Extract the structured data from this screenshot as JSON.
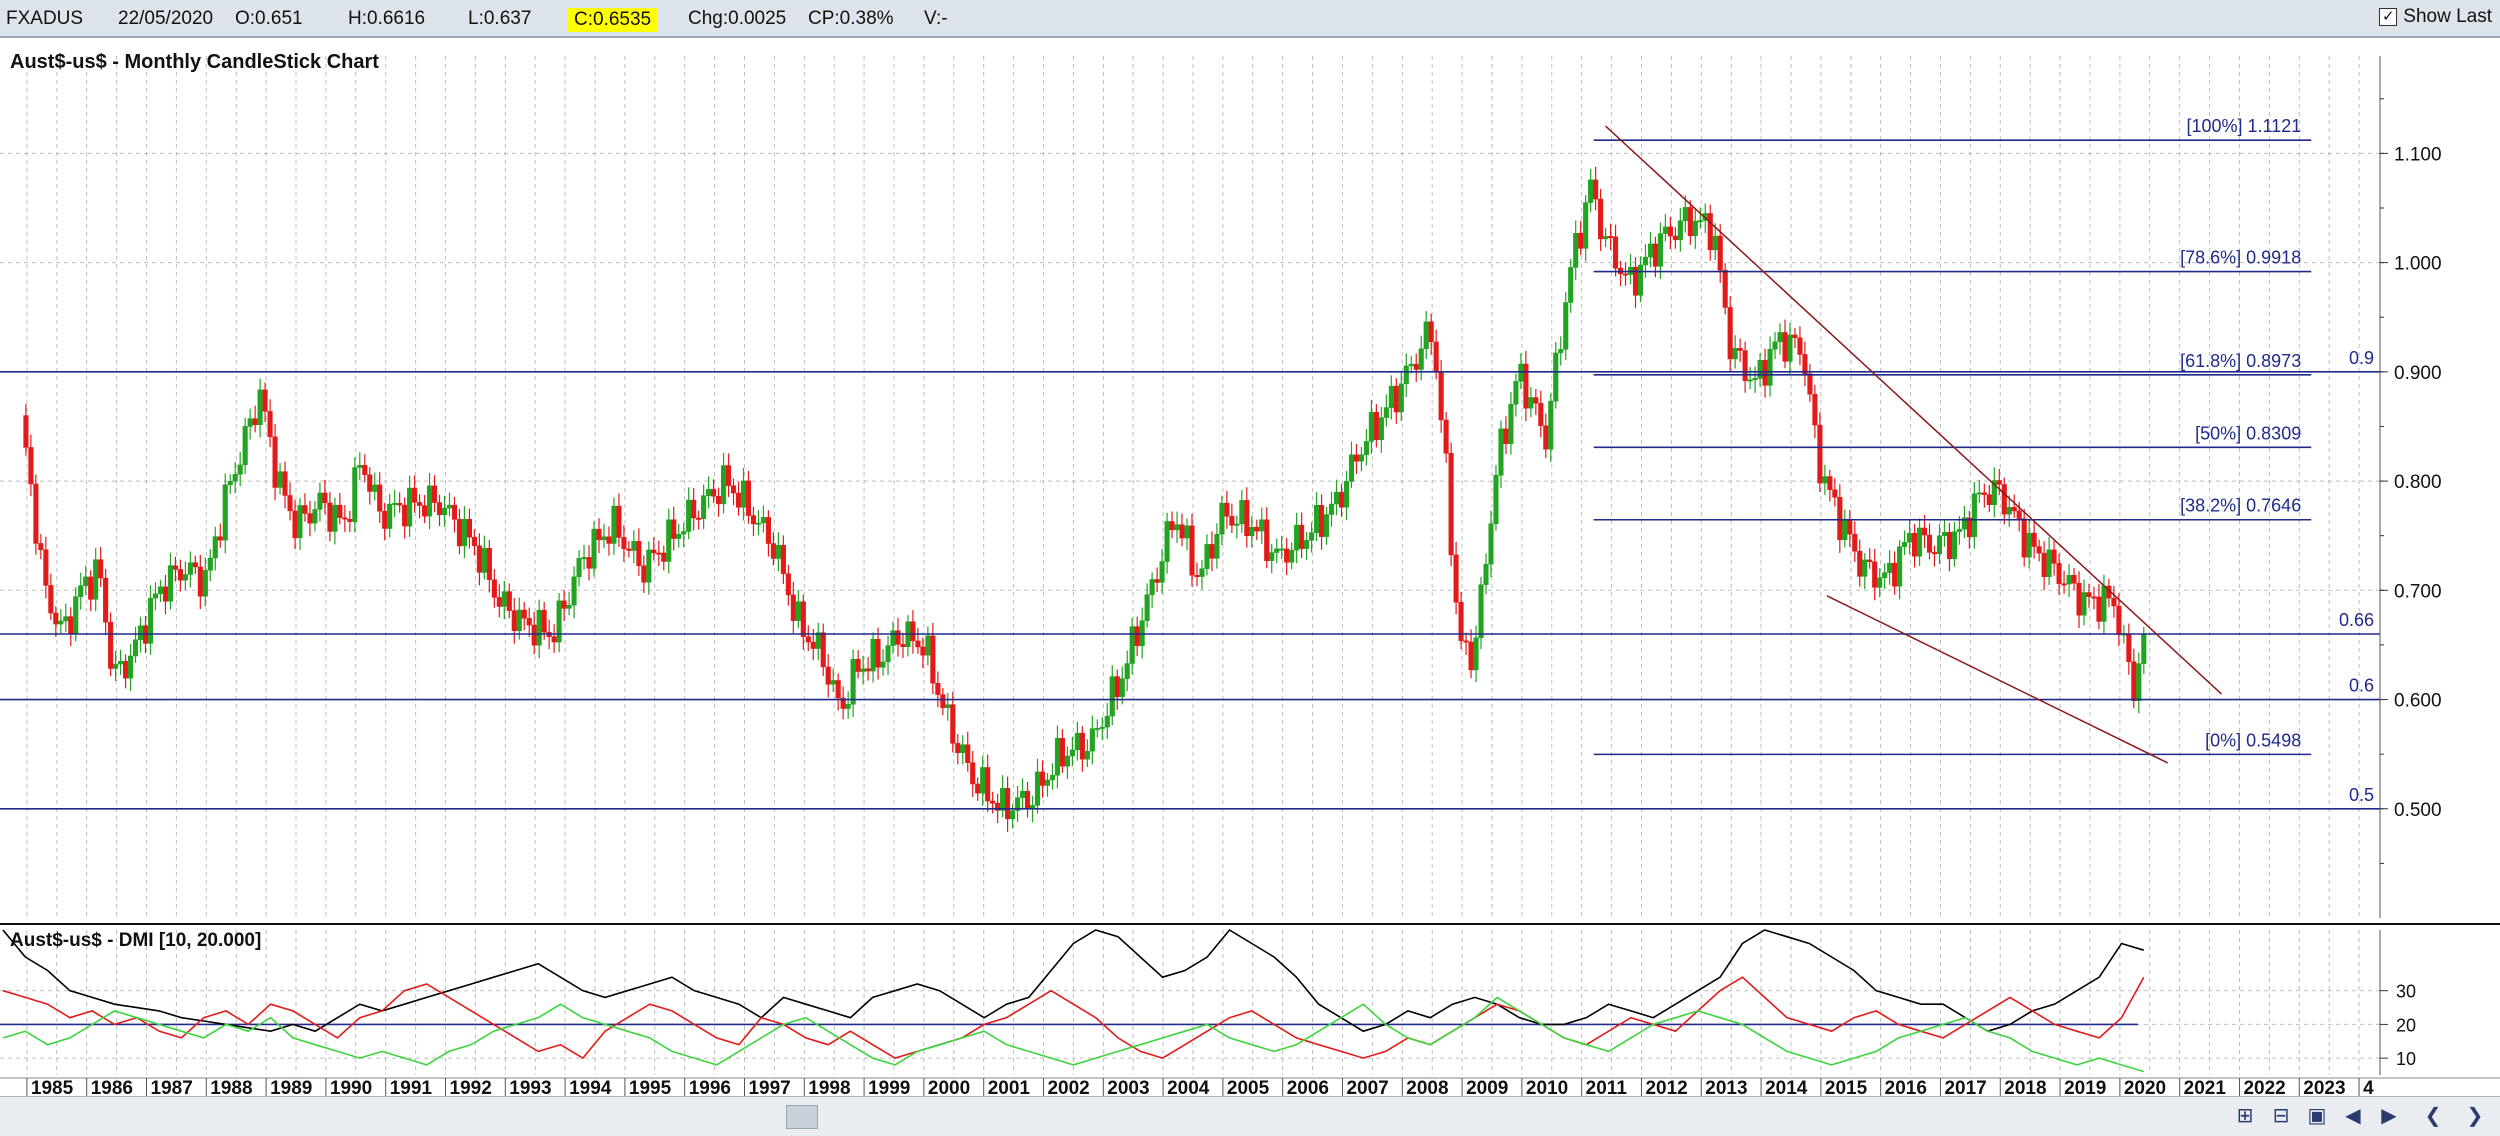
{
  "toolbar": {
    "symbol": "FXADUS",
    "date": "22/05/2020",
    "open": "O:0.651",
    "high": "H:0.6616",
    "low": "L:0.637",
    "close": "C:0.6535",
    "change": "Chg:0.0025",
    "change_pct": "CP:0.38%",
    "volume": "V:-",
    "show_last_label": "Show Last",
    "show_last_checked": "✓"
  },
  "chart_data": [
    {
      "type": "candlestick",
      "title": "Aust$-us$ - Monthly CandleStick Chart",
      "colors": {
        "up": "#22a322",
        "down": "#e31a1a",
        "hline": "#1f2a8a",
        "trend": "#8b1a1a",
        "grid": "#bdbdbd"
      },
      "y_ticks": [
        "1.100",
        "1.000",
        "0.900",
        "0.800",
        "0.700",
        "0.600",
        "0.500"
      ],
      "ylim": [
        0.4,
        1.18
      ],
      "x_ticks": [
        "1985",
        "1986",
        "1987",
        "1988",
        "1989",
        "1990",
        "1991",
        "1992",
        "1993",
        "1994",
        "1995",
        "1996",
        "1997",
        "1998",
        "1999",
        "2000",
        "2001",
        "2002",
        "2003",
        "2004",
        "2005",
        "2006",
        "2007",
        "2008",
        "2009",
        "2010",
        "2011",
        "2012",
        "2013",
        "2014",
        "2015",
        "2016",
        "2017",
        "2018",
        "2019",
        "2020",
        "2021",
        "2022",
        "2023",
        "4"
      ],
      "anchors": [
        {
          "date": 1984.9,
          "value": 0.86
        },
        {
          "date": 1985.3,
          "value": 0.7
        },
        {
          "date": 1985.6,
          "value": 0.66
        },
        {
          "date": 1985.9,
          "value": 0.7
        },
        {
          "date": 1986.2,
          "value": 0.72
        },
        {
          "date": 1986.45,
          "value": 0.62
        },
        {
          "date": 1986.75,
          "value": 0.64
        },
        {
          "date": 1987.2,
          "value": 0.7
        },
        {
          "date": 1987.6,
          "value": 0.72
        },
        {
          "date": 1988.0,
          "value": 0.71
        },
        {
          "date": 1988.3,
          "value": 0.78
        },
        {
          "date": 1988.9,
          "value": 0.88
        },
        {
          "date": 1989.2,
          "value": 0.8
        },
        {
          "date": 1989.5,
          "value": 0.76
        },
        {
          "date": 1989.9,
          "value": 0.78
        },
        {
          "date": 1990.3,
          "value": 0.76
        },
        {
          "date": 1990.6,
          "value": 0.82
        },
        {
          "date": 1990.9,
          "value": 0.77
        },
        {
          "date": 1991.5,
          "value": 0.78
        },
        {
          "date": 1991.9,
          "value": 0.78
        },
        {
          "date": 1992.5,
          "value": 0.74
        },
        {
          "date": 1992.9,
          "value": 0.69
        },
        {
          "date": 1993.3,
          "value": 0.67
        },
        {
          "date": 1993.8,
          "value": 0.66
        },
        {
          "date": 1994.3,
          "value": 0.73
        },
        {
          "date": 1994.8,
          "value": 0.76
        },
        {
          "date": 1995.3,
          "value": 0.72
        },
        {
          "date": 1995.8,
          "value": 0.75
        },
        {
          "date": 1996.3,
          "value": 0.78
        },
        {
          "date": 1996.7,
          "value": 0.8
        },
        {
          "date": 1997.0,
          "value": 0.78
        },
        {
          "date": 1997.5,
          "value": 0.74
        },
        {
          "date": 1997.9,
          "value": 0.67
        },
        {
          "date": 1998.3,
          "value": 0.64
        },
        {
          "date": 1998.6,
          "value": 0.59
        },
        {
          "date": 1998.9,
          "value": 0.63
        },
        {
          "date": 1999.3,
          "value": 0.64
        },
        {
          "date": 1999.6,
          "value": 0.66
        },
        {
          "date": 2000.0,
          "value": 0.65
        },
        {
          "date": 2000.4,
          "value": 0.58
        },
        {
          "date": 2000.8,
          "value": 0.53
        },
        {
          "date": 2001.3,
          "value": 0.5
        },
        {
          "date": 2001.8,
          "value": 0.51
        },
        {
          "date": 2002.3,
          "value": 0.55
        },
        {
          "date": 2002.8,
          "value": 0.56
        },
        {
          "date": 2003.3,
          "value": 0.62
        },
        {
          "date": 2003.8,
          "value": 0.7
        },
        {
          "date": 2004.2,
          "value": 0.77
        },
        {
          "date": 2004.6,
          "value": 0.71
        },
        {
          "date": 2005.0,
          "value": 0.77
        },
        {
          "date": 2005.5,
          "value": 0.76
        },
        {
          "date": 2005.9,
          "value": 0.73
        },
        {
          "date": 2006.4,
          "value": 0.75
        },
        {
          "date": 2006.9,
          "value": 0.78
        },
        {
          "date": 2007.3,
          "value": 0.83
        },
        {
          "date": 2007.9,
          "value": 0.88
        },
        {
          "date": 2008.5,
          "value": 0.94
        },
        {
          "date": 2008.75,
          "value": 0.8
        },
        {
          "date": 2008.95,
          "value": 0.65
        },
        {
          "date": 2009.2,
          "value": 0.64
        },
        {
          "date": 2009.6,
          "value": 0.82
        },
        {
          "date": 2009.95,
          "value": 0.9
        },
        {
          "date": 2010.4,
          "value": 0.84
        },
        {
          "date": 2010.8,
          "value": 0.99
        },
        {
          "date": 2011.15,
          "value": 1.07
        },
        {
          "date": 2011.4,
          "value": 1.02
        },
        {
          "date": 2011.8,
          "value": 0.98
        },
        {
          "date": 2012.3,
          "value": 1.02
        },
        {
          "date": 2012.8,
          "value": 1.04
        },
        {
          "date": 2013.2,
          "value": 1.03
        },
        {
          "date": 2013.5,
          "value": 0.92
        },
        {
          "date": 2013.9,
          "value": 0.89
        },
        {
          "date": 2014.3,
          "value": 0.93
        },
        {
          "date": 2014.7,
          "value": 0.92
        },
        {
          "date": 2014.95,
          "value": 0.82
        },
        {
          "date": 2015.2,
          "value": 0.78
        },
        {
          "date": 2015.7,
          "value": 0.72
        },
        {
          "date": 2016.1,
          "value": 0.71
        },
        {
          "date": 2016.5,
          "value": 0.75
        },
        {
          "date": 2016.9,
          "value": 0.74
        },
        {
          "date": 2017.3,
          "value": 0.75
        },
        {
          "date": 2017.7,
          "value": 0.79
        },
        {
          "date": 2018.0,
          "value": 0.79
        },
        {
          "date": 2018.5,
          "value": 0.74
        },
        {
          "date": 2018.9,
          "value": 0.72
        },
        {
          "date": 2019.4,
          "value": 0.69
        },
        {
          "date": 2019.9,
          "value": 0.69
        },
        {
          "date": 2020.1,
          "value": 0.64
        },
        {
          "date": 2020.25,
          "value": 0.61
        },
        {
          "date": 2020.4,
          "value": 0.6535
        }
      ],
      "horizontal_lines": [
        {
          "value": 0.9,
          "label": "0.9"
        },
        {
          "value": 0.66,
          "label": "0.66"
        },
        {
          "value": 0.6,
          "label": "0.6"
        },
        {
          "value": 0.5,
          "label": "0.5"
        }
      ],
      "fibonacci": [
        {
          "level": "[100%] 1.1121",
          "value": 1.1121
        },
        {
          "level": "[78.6%] 0.9918",
          "value": 0.9918
        },
        {
          "level": "[61.8%] 0.8973",
          "value": 0.8973
        },
        {
          "level": "[50%] 0.8309",
          "value": 0.8309
        },
        {
          "level": "[38.2%] 0.7646",
          "value": 0.7646
        },
        {
          "level": "[0%] 0.5498",
          "value": 0.5498
        }
      ],
      "trendlines": [
        {
          "from": {
            "date": 2011.4,
            "value": 1.125
          },
          "to": {
            "date": 2021.7,
            "value": 0.605
          }
        },
        {
          "from": {
            "date": 2015.1,
            "value": 0.695
          },
          "to": {
            "date": 2020.8,
            "value": 0.542
          }
        }
      ]
    },
    {
      "type": "line",
      "title": "Aust$-us$ - DMI [10, 20.000]",
      "y_ticks": [
        "30",
        "20",
        "10"
      ],
      "ylim": [
        5,
        48
      ],
      "reference_line": 20,
      "series": [
        {
          "color": "#000000",
          "values": [
            48,
            40,
            36,
            30,
            28,
            26,
            25,
            24,
            22,
            21,
            20,
            19,
            18,
            20,
            18,
            22,
            26,
            24,
            26,
            28,
            30,
            32,
            34,
            36,
            38,
            34,
            30,
            28,
            30,
            32,
            34,
            30,
            28,
            26,
            22,
            28,
            26,
            24,
            22,
            28,
            30,
            32,
            30,
            26,
            22,
            26,
            28,
            36,
            44,
            48,
            46,
            40,
            34,
            36,
            40,
            48,
            44,
            40,
            34,
            26,
            22,
            18,
            20,
            24,
            22,
            26,
            28,
            26,
            22,
            20,
            20,
            22,
            26,
            24,
            22,
            26,
            30,
            34,
            44,
            48,
            46,
            44,
            40,
            36,
            30,
            28,
            26,
            26,
            22,
            18,
            20,
            24,
            26,
            30,
            34,
            44,
            42
          ]
        },
        {
          "color": "#e31a1a",
          "values": [
            30,
            28,
            26,
            22,
            24,
            20,
            22,
            18,
            16,
            22,
            24,
            20,
            26,
            24,
            20,
            16,
            22,
            24,
            30,
            32,
            28,
            24,
            20,
            16,
            12,
            14,
            10,
            18,
            22,
            26,
            24,
            20,
            16,
            14,
            22,
            20,
            16,
            14,
            18,
            14,
            10,
            12,
            14,
            16,
            20,
            22,
            26,
            30,
            26,
            22,
            16,
            12,
            10,
            14,
            18,
            22,
            24,
            20,
            16,
            14,
            12,
            10,
            12,
            16,
            14,
            18,
            22,
            26,
            24,
            20,
            16,
            14,
            18,
            22,
            20,
            18,
            24,
            30,
            34,
            28,
            22,
            20,
            18,
            22,
            24,
            20,
            18,
            16,
            20,
            24,
            28,
            24,
            20,
            18,
            16,
            22,
            34
          ]
        },
        {
          "color": "#3dd43d",
          "values": [
            16,
            18,
            14,
            16,
            20,
            24,
            22,
            20,
            18,
            16,
            20,
            18,
            22,
            16,
            14,
            12,
            10,
            12,
            10,
            8,
            12,
            14,
            18,
            20,
            22,
            26,
            22,
            20,
            18,
            16,
            12,
            10,
            8,
            12,
            16,
            20,
            22,
            18,
            14,
            10,
            8,
            12,
            14,
            16,
            18,
            14,
            12,
            10,
            8,
            10,
            12,
            14,
            16,
            18,
            20,
            16,
            14,
            12,
            14,
            18,
            22,
            26,
            20,
            16,
            14,
            18,
            22,
            28,
            24,
            20,
            16,
            14,
            12,
            16,
            20,
            22,
            24,
            22,
            20,
            16,
            12,
            10,
            8,
            10,
            12,
            16,
            18,
            20,
            22,
            18,
            16,
            12,
            10,
            8,
            10,
            8,
            6
          ]
        }
      ]
    }
  ]
}
